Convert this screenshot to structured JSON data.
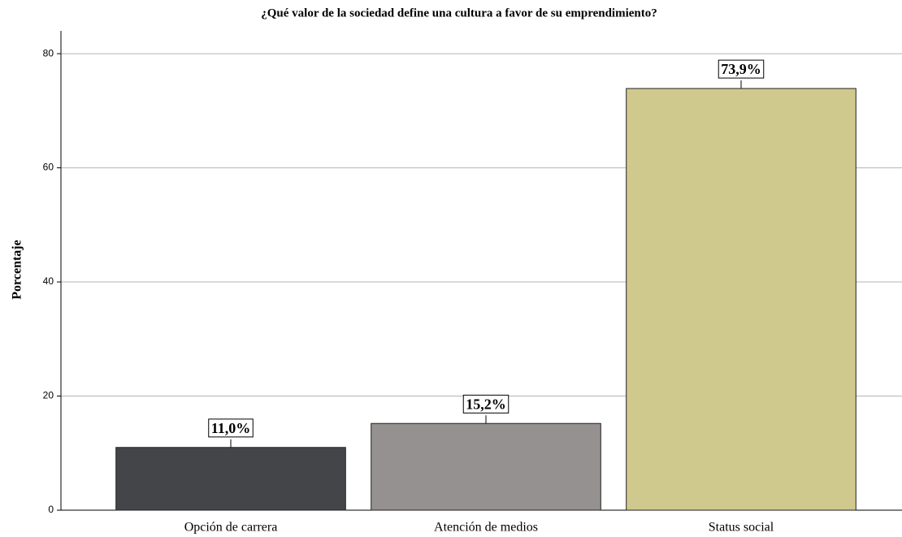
{
  "chart_data": {
    "type": "bar",
    "title": "¿Qué valor de la sociedad define una cultura a favor de su emprendimiento?",
    "ylabel": "Porcentaje",
    "categories": [
      "Opción de carrera",
      "Atención de medios",
      "Status social"
    ],
    "values": [
      11.0,
      15.2,
      73.9
    ],
    "value_labels": [
      "11,0%",
      "15,2%",
      "73,9%"
    ],
    "colors": [
      "#444548",
      "#959190",
      "#d0c98e"
    ],
    "ylim": [
      0,
      84
    ],
    "yticks": [
      0,
      20,
      40,
      60,
      80
    ],
    "grid": true
  }
}
